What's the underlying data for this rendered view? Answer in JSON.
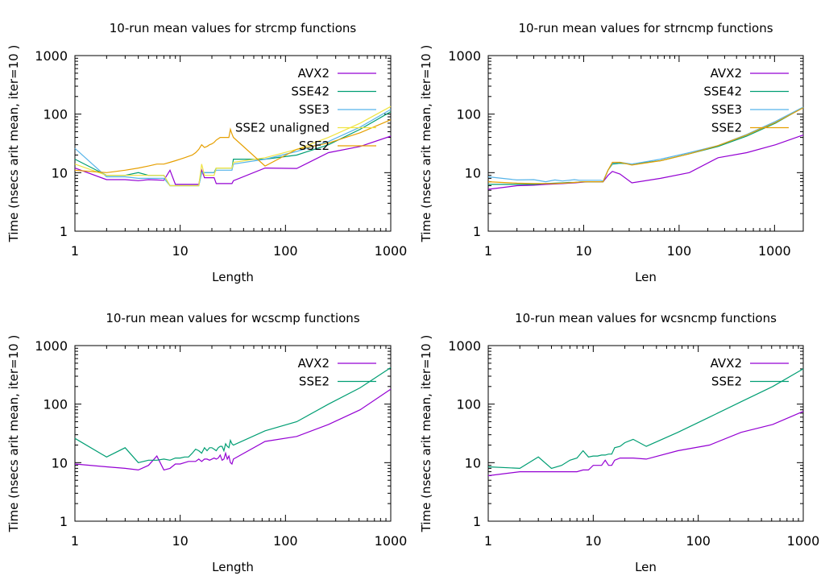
{
  "chart_data": [
    {
      "type": "line",
      "title": "10-run mean values for strcmp functions",
      "xlabel": "Length",
      "ylabel": "Time (nsecs arit mean, iter=10 )",
      "xscale": "log",
      "yscale": "log",
      "xlim": [
        1,
        1000
      ],
      "ylim": [
        1,
        1000
      ],
      "xticks": [
        1,
        10,
        100,
        1000
      ],
      "yticks": [
        1,
        10,
        100,
        1000
      ],
      "legend_position": "top-right",
      "series": [
        {
          "name": "AVX2",
          "color": "#9400d3",
          "x": [
            1,
            2,
            3,
            4,
            5,
            6,
            7,
            8,
            9,
            10,
            11,
            12,
            13,
            14,
            15,
            16,
            17,
            18,
            19,
            20,
            21,
            22,
            23,
            24,
            25,
            26,
            27,
            28,
            29,
            30,
            31,
            32,
            64,
            128,
            256,
            512,
            1000
          ],
          "y": [
            12,
            7.6,
            7.6,
            7.3,
            7.6,
            7.5,
            7.4,
            11,
            6.3,
            6.3,
            6.3,
            6.3,
            6.3,
            6.3,
            6.3,
            11,
            8.2,
            8.2,
            8.2,
            8.2,
            8.2,
            6.5,
            6.5,
            6.5,
            6.5,
            6.5,
            6.5,
            6.5,
            6.5,
            6.5,
            6.5,
            7.3,
            12,
            11.8,
            22,
            28,
            42
          ]
        },
        {
          "name": "SSE42",
          "color": "#009e73",
          "x": [
            1,
            2,
            3,
            4,
            5,
            6,
            7,
            8,
            9,
            10,
            11,
            12,
            13,
            14,
            15,
            16,
            17,
            18,
            19,
            20,
            21,
            22,
            23,
            24,
            25,
            26,
            27,
            28,
            29,
            30,
            31,
            32,
            64,
            128,
            256,
            512,
            1000
          ],
          "y": [
            17,
            9,
            9,
            10,
            9,
            9,
            9,
            6,
            6,
            6,
            6,
            6,
            6,
            6,
            6,
            10,
            10,
            10,
            10,
            10,
            10,
            12,
            12,
            12,
            12,
            12,
            12,
            12,
            12,
            12,
            12,
            17,
            17,
            20,
            30,
            55,
            110
          ]
        },
        {
          "name": "SSE3",
          "color": "#56b4e9",
          "x": [
            1,
            2,
            3,
            4,
            5,
            6,
            7,
            8,
            9,
            10,
            11,
            12,
            13,
            14,
            15,
            16,
            17,
            18,
            19,
            20,
            21,
            22,
            23,
            24,
            25,
            26,
            27,
            28,
            29,
            30,
            31,
            32,
            64,
            128,
            256,
            512,
            1000
          ],
          "y": [
            26,
            8.5,
            8.5,
            8,
            8,
            8,
            8,
            6,
            6,
            6,
            6,
            6,
            6,
            6,
            6,
            10,
            10,
            10,
            10,
            10,
            10,
            11,
            11,
            11,
            11,
            11,
            11,
            11,
            11,
            11,
            11,
            14,
            17,
            23,
            34,
            60,
            120
          ]
        },
        {
          "name": "SSE2 unaligned",
          "color": "#f0e442",
          "x": [
            1,
            2,
            3,
            4,
            5,
            6,
            7,
            8,
            9,
            10,
            11,
            12,
            13,
            14,
            15,
            16,
            17,
            18,
            19,
            20,
            21,
            22,
            23,
            24,
            25,
            26,
            27,
            28,
            29,
            30,
            31,
            32,
            64,
            128,
            256,
            512,
            1000
          ],
          "y": [
            14,
            9,
            9,
            9,
            9,
            9,
            9,
            6,
            6,
            6,
            6,
            6,
            6,
            6,
            6,
            14,
            9,
            9,
            9,
            9,
            9,
            12,
            12,
            12,
            12,
            12,
            12,
            12,
            12,
            12,
            12,
            15,
            18,
            25,
            40,
            70,
            135
          ]
        },
        {
          "name": "SSE2",
          "color": "#e69f00",
          "x": [
            1,
            2,
            3,
            4,
            5,
            6,
            7,
            8,
            9,
            10,
            11,
            12,
            13,
            14,
            15,
            16,
            17,
            18,
            19,
            20,
            21,
            22,
            23,
            24,
            25,
            26,
            27,
            28,
            29,
            30,
            31,
            32,
            64,
            128,
            256,
            512,
            1000
          ],
          "y": [
            11,
            10,
            11,
            12,
            13,
            14,
            14,
            15,
            16,
            17,
            18,
            19,
            20,
            22,
            25,
            30,
            27,
            28,
            30,
            31,
            33,
            36,
            38,
            40,
            40,
            40,
            40,
            40,
            40,
            55,
            46,
            40,
            13,
            25,
            32,
            48,
            80
          ]
        }
      ]
    },
    {
      "type": "line",
      "title": "10-run mean values for strncmp functions",
      "xlabel": "Len",
      "ylabel": "Time (nsecs arit mean, iter=10 )",
      "xscale": "log",
      "yscale": "log",
      "xlim": [
        1,
        2000
      ],
      "ylim": [
        1,
        1000
      ],
      "xticks": [
        1,
        10,
        100,
        1000
      ],
      "yticks": [
        1,
        10,
        100,
        1000
      ],
      "legend_position": "top-right",
      "series": [
        {
          "name": "AVX2",
          "color": "#9400d3",
          "x": [
            1,
            2,
            3,
            4,
            5,
            6,
            7,
            8,
            9,
            10,
            11,
            12,
            13,
            14,
            15,
            16,
            18,
            20,
            24,
            32,
            64,
            128,
            256,
            512,
            1024,
            2000
          ],
          "y": [
            5.2,
            6,
            6.1,
            6.3,
            6.4,
            6.5,
            6.6,
            6.7,
            6.8,
            6.9,
            7,
            7,
            7,
            7,
            7,
            7,
            9,
            10.5,
            9.5,
            6.7,
            8,
            10,
            18,
            22,
            30,
            44
          ]
        },
        {
          "name": "SSE42",
          "color": "#009e73",
          "x": [
            1,
            2,
            3,
            4,
            5,
            6,
            7,
            8,
            9,
            10,
            11,
            12,
            13,
            14,
            15,
            16,
            18,
            20,
            24,
            32,
            64,
            128,
            256,
            512,
            1024,
            2000
          ],
          "y": [
            6.3,
            6.3,
            6.3,
            6.5,
            6.6,
            6.7,
            6.8,
            6.8,
            6.9,
            7,
            7,
            7,
            7,
            7,
            7,
            7,
            11,
            14,
            14.5,
            14,
            16,
            21,
            28,
            42,
            70,
            130
          ]
        },
        {
          "name": "SSE3",
          "color": "#56b4e9",
          "x": [
            1,
            2,
            3,
            4,
            5,
            6,
            7,
            8,
            9,
            10,
            11,
            12,
            13,
            14,
            15,
            16,
            18,
            20,
            24,
            32,
            64,
            128,
            256,
            512,
            1024,
            2000
          ],
          "y": [
            8.5,
            7.5,
            7.6,
            7,
            7.5,
            7.2,
            7.4,
            7.6,
            7.4,
            7.4,
            7.4,
            7.4,
            7.4,
            7.4,
            7.4,
            7.2,
            11,
            14.5,
            15,
            14,
            17,
            22,
            29,
            45,
            75,
            132
          ]
        },
        {
          "name": "SSE2",
          "color": "#e69f00",
          "x": [
            1,
            2,
            3,
            4,
            5,
            6,
            7,
            8,
            9,
            10,
            11,
            12,
            13,
            14,
            15,
            16,
            18,
            20,
            24,
            32,
            64,
            128,
            256,
            512,
            1024,
            2000
          ],
          "y": [
            7,
            6.6,
            6.5,
            6.5,
            6.5,
            6.6,
            6.7,
            6.8,
            6.9,
            7,
            7,
            7,
            7,
            7,
            7,
            7,
            11,
            15,
            15,
            13.5,
            16,
            21,
            29,
            44,
            72,
            128
          ]
        }
      ]
    },
    {
      "type": "line",
      "title": "10-run mean values for wcscmp functions",
      "xlabel": "Length",
      "ylabel": "Time (nsecs arit mean, iter=10 )",
      "xscale": "log",
      "yscale": "log",
      "xlim": [
        1,
        1000
      ],
      "ylim": [
        1,
        1000
      ],
      "xticks": [
        1,
        10,
        100,
        1000
      ],
      "yticks": [
        1,
        10,
        100,
        1000
      ],
      "legend_position": "top-right",
      "series": [
        {
          "name": "AVX2",
          "color": "#9400d3",
          "x": [
            1,
            2,
            3,
            4,
            5,
            6,
            7,
            8,
            9,
            10,
            11,
            12,
            13,
            14,
            15,
            16,
            17,
            18,
            19,
            20,
            21,
            22,
            23,
            24,
            25,
            26,
            27,
            28,
            29,
            30,
            31,
            32,
            64,
            128,
            256,
            512,
            1000
          ],
          "y": [
            9.5,
            8.5,
            8,
            7.5,
            9,
            13,
            7.5,
            8,
            9.5,
            9.5,
            10,
            10.5,
            10.5,
            10.5,
            11.5,
            10.5,
            11.5,
            11.5,
            11,
            11.5,
            12,
            11.5,
            12,
            13.5,
            11,
            11.5,
            14.5,
            11.5,
            13,
            10,
            9.5,
            11.5,
            23,
            28,
            45,
            80,
            180
          ]
        },
        {
          "name": "SSE2",
          "color": "#009e73",
          "x": [
            1,
            2,
            3,
            4,
            5,
            6,
            7,
            8,
            9,
            10,
            11,
            12,
            13,
            14,
            15,
            16,
            17,
            18,
            19,
            20,
            21,
            22,
            23,
            24,
            25,
            26,
            27,
            28,
            29,
            30,
            31,
            32,
            64,
            128,
            256,
            512,
            1000
          ],
          "y": [
            26,
            12.5,
            18,
            10,
            11,
            11,
            11.5,
            11,
            12,
            12,
            12.5,
            12.5,
            14.5,
            17,
            16,
            14.5,
            18,
            16,
            18,
            18,
            17,
            16,
            18,
            19,
            19,
            16,
            21,
            19,
            18,
            24,
            21,
            20,
            35,
            50,
            100,
            190,
            420
          ]
        }
      ]
    },
    {
      "type": "line",
      "title": "10-run mean values for wcsncmp functions",
      "xlabel": "Len",
      "ylabel": "Time (nsecs arit mean, iter=10 )",
      "xscale": "log",
      "yscale": "log",
      "xlim": [
        1,
        1000
      ],
      "ylim": [
        1,
        1000
      ],
      "xticks": [
        1,
        10,
        100,
        1000
      ],
      "yticks": [
        1,
        10,
        100,
        1000
      ],
      "legend_position": "top-right",
      "series": [
        {
          "name": "AVX2",
          "color": "#9400d3",
          "x": [
            1,
            2,
            3,
            4,
            5,
            6,
            7,
            8,
            9,
            10,
            11,
            12,
            13,
            14,
            15,
            16,
            18,
            20,
            24,
            32,
            64,
            128,
            256,
            512,
            1000
          ],
          "y": [
            6,
            7,
            7,
            7,
            7,
            7,
            7,
            7.5,
            7.5,
            9,
            9,
            9,
            11,
            9,
            9,
            11,
            12,
            12,
            12,
            11.5,
            16,
            20,
            33,
            45,
            75
          ]
        },
        {
          "name": "SSE2",
          "color": "#009e73",
          "x": [
            1,
            2,
            3,
            4,
            5,
            6,
            7,
            8,
            9,
            10,
            11,
            12,
            13,
            14,
            15,
            16,
            18,
            20,
            24,
            32,
            64,
            128,
            256,
            512,
            1000
          ],
          "y": [
            8.5,
            8,
            12.5,
            8,
            9,
            11,
            12,
            16,
            12.5,
            13,
            13,
            13.5,
            13.5,
            14,
            14,
            18,
            19,
            22,
            25,
            19,
            33,
            60,
            110,
            200,
            400
          ]
        }
      ]
    }
  ]
}
